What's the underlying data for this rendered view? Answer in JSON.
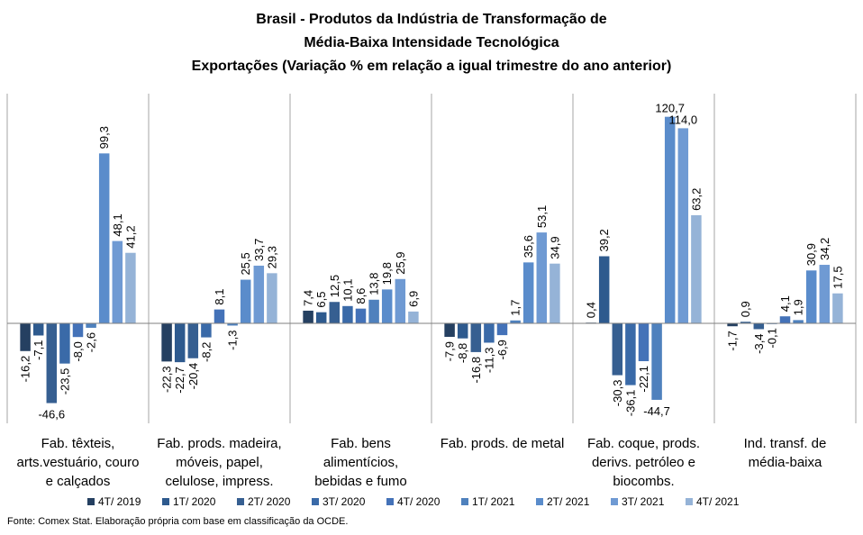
{
  "title": {
    "line1": "Brasil - Produtos da Indústria de Transformação de",
    "line2": "Média-Baixa Intensidade Tecnológica",
    "line3": "Exportações (Variação % em relação a igual trimestre do ano anterior)"
  },
  "source_note": "Fonte: Comex Stat. Elaboração própria com base em classificação da OCDE.",
  "colors": {
    "series": [
      "#254061",
      "#2E5A8E",
      "#365F91",
      "#3A6AA8",
      "#4472B8",
      "#4F81BD",
      "#5A8CCB",
      "#6F9AD3",
      "#95B3D7"
    ],
    "grid": "#A6A6A6",
    "axis": "#7F7F7F"
  },
  "chart_data": {
    "type": "bar",
    "title": "Brasil - Produtos da Indústria de Transformação de Média-Baixa Intensidade Tecnológica Exportações (Variação % em relação a igual trimestre do ano anterior)",
    "legend_position": "bottom",
    "ylim": [
      -60,
      130
    ],
    "categories": [
      [
        "Fab. têxteis,",
        "arts.vestuário, couro",
        "e calçados"
      ],
      [
        "Fab. prods. madeira,",
        "móveis, papel,",
        "celulose, impress."
      ],
      [
        "Fab. bens",
        "alimentícios,",
        "bebidas e fumo"
      ],
      [
        "Fab. prods. de metal"
      ],
      [
        "Fab. coque, prods.",
        "derivs. petróleo e",
        "biocombs."
      ],
      [
        "Ind. transf. de",
        "média-baixa"
      ]
    ],
    "series": [
      {
        "name": "4T/ 2019",
        "values": [
          -16.2,
          -22.3,
          7.4,
          -7.9,
          0.4,
          -1.7
        ],
        "labels": [
          "-16,2",
          "-22,3",
          "7,4",
          "-7,9",
          "0,4",
          "-1,7"
        ]
      },
      {
        "name": "1T/ 2020",
        "values": [
          -7.1,
          -22.7,
          6.5,
          -8.8,
          39.2,
          0.9
        ],
        "labels": [
          "-7,1",
          "-22,7",
          "6,5",
          "-8,8",
          "39,2",
          "0,9"
        ]
      },
      {
        "name": "2T/ 2020",
        "values": [
          -46.6,
          -20.4,
          12.5,
          -16.8,
          -30.3,
          -3.4
        ],
        "labels": [
          "-46,6",
          "-20,4",
          "12,5",
          "-16,8",
          "-30,3",
          "-3,4"
        ]
      },
      {
        "name": "3T/ 2020",
        "values": [
          -23.5,
          -8.2,
          10.1,
          -11.3,
          -36.1,
          -0.1
        ],
        "labels": [
          "-23,5",
          "-8,2",
          "10,1",
          "-11,3",
          "-36,1",
          "-0,1"
        ]
      },
      {
        "name": "4T/ 2020",
        "values": [
          -8.0,
          8.1,
          8.6,
          -6.9,
          -22.1,
          4.1
        ],
        "labels": [
          "-8,0",
          "8,1",
          "8,6",
          "-6,9",
          "-22,1",
          "4,1"
        ]
      },
      {
        "name": "1T/ 2021",
        "values": [
          -2.6,
          -1.3,
          13.8,
          1.7,
          -44.7,
          1.9
        ],
        "labels": [
          "-2,6",
          "-1,3",
          "13,8",
          "1,7",
          "-44,7",
          "1,9"
        ]
      },
      {
        "name": "2T/ 2021",
        "values": [
          99.3,
          25.5,
          19.8,
          35.6,
          120.7,
          30.9
        ],
        "labels": [
          "99,3",
          "25,5",
          "19,8",
          "35,6",
          "120,7",
          "30,9"
        ]
      },
      {
        "name": "3T/ 2021",
        "values": [
          48.1,
          33.7,
          25.9,
          53.1,
          114.0,
          34.2
        ],
        "labels": [
          "48,1",
          "33,7",
          "25,9",
          "53,1",
          "114,0",
          "34,2"
        ]
      },
      {
        "name": "4T/ 2021",
        "values": [
          41.2,
          29.3,
          6.9,
          34.9,
          63.2,
          17.5
        ],
        "labels": [
          "41,2",
          "29,3",
          "6,9",
          "34,9",
          "63,2",
          "17,5"
        ]
      }
    ]
  }
}
